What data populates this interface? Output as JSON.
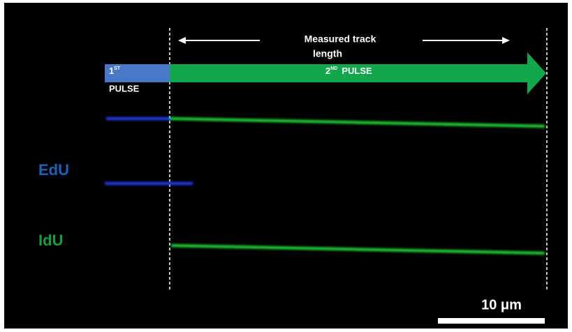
{
  "annotations": {
    "measured_track": {
      "line1": "Measured track",
      "line2": "length"
    },
    "first_pulse": {
      "number": "1",
      "superscript": "ST",
      "label": "PULSE"
    },
    "second_pulse": {
      "number": "2",
      "superscript": "ND",
      "label": "PULSE"
    },
    "channels": {
      "edu": "EdU",
      "idu": "IdU"
    },
    "scale_bar": "10 μm"
  }
}
